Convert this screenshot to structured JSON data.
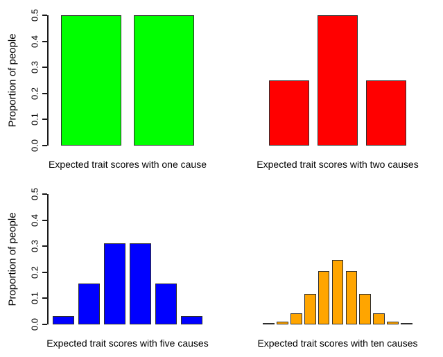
{
  "figure": {
    "background_color": "#FFFFFF",
    "axis_color": "#000000",
    "bar_border_color": "#2E2E2E"
  },
  "chart_data": [
    {
      "type": "bar",
      "xlabel": "Expected trait scores with one cause",
      "ylabel": "Proportion of people",
      "ylim": [
        0,
        0.5
      ],
      "ytick_labels": [
        "0.0",
        "0.1",
        "0.2",
        "0.3",
        "0.4",
        "0.5"
      ],
      "values": [
        0.5,
        0.5
      ],
      "bar_color": "#00FF00",
      "y_axis_shown": true,
      "grid": false,
      "legend": false
    },
    {
      "type": "bar",
      "xlabel": "Expected trait scores with two causes",
      "ylim": [
        0,
        0.5
      ],
      "values": [
        0.25,
        0.5,
        0.25
      ],
      "bar_color": "#FF0000",
      "y_axis_shown": false,
      "grid": false,
      "legend": false
    },
    {
      "type": "bar",
      "xlabel": "Expected trait scores with five causes",
      "ylabel": "Proportion of people",
      "ylim": [
        0,
        0.5
      ],
      "ytick_labels": [
        "0.0",
        "0.1",
        "0.2",
        "0.3",
        "0.4",
        "0.5"
      ],
      "values": [
        0.03125,
        0.15625,
        0.3125,
        0.3125,
        0.15625,
        0.03125
      ],
      "bar_color": "#0000FF",
      "y_axis_shown": true,
      "grid": false,
      "legend": false
    },
    {
      "type": "bar",
      "xlabel": "Expected trait scores with ten causes",
      "ylim": [
        0,
        0.5
      ],
      "values": [
        0.001,
        0.0098,
        0.0439,
        0.1172,
        0.2051,
        0.2461,
        0.2051,
        0.1172,
        0.0439,
        0.0098,
        0.001
      ],
      "bar_color": "#FFA500",
      "y_axis_shown": false,
      "grid": false,
      "legend": false
    }
  ]
}
